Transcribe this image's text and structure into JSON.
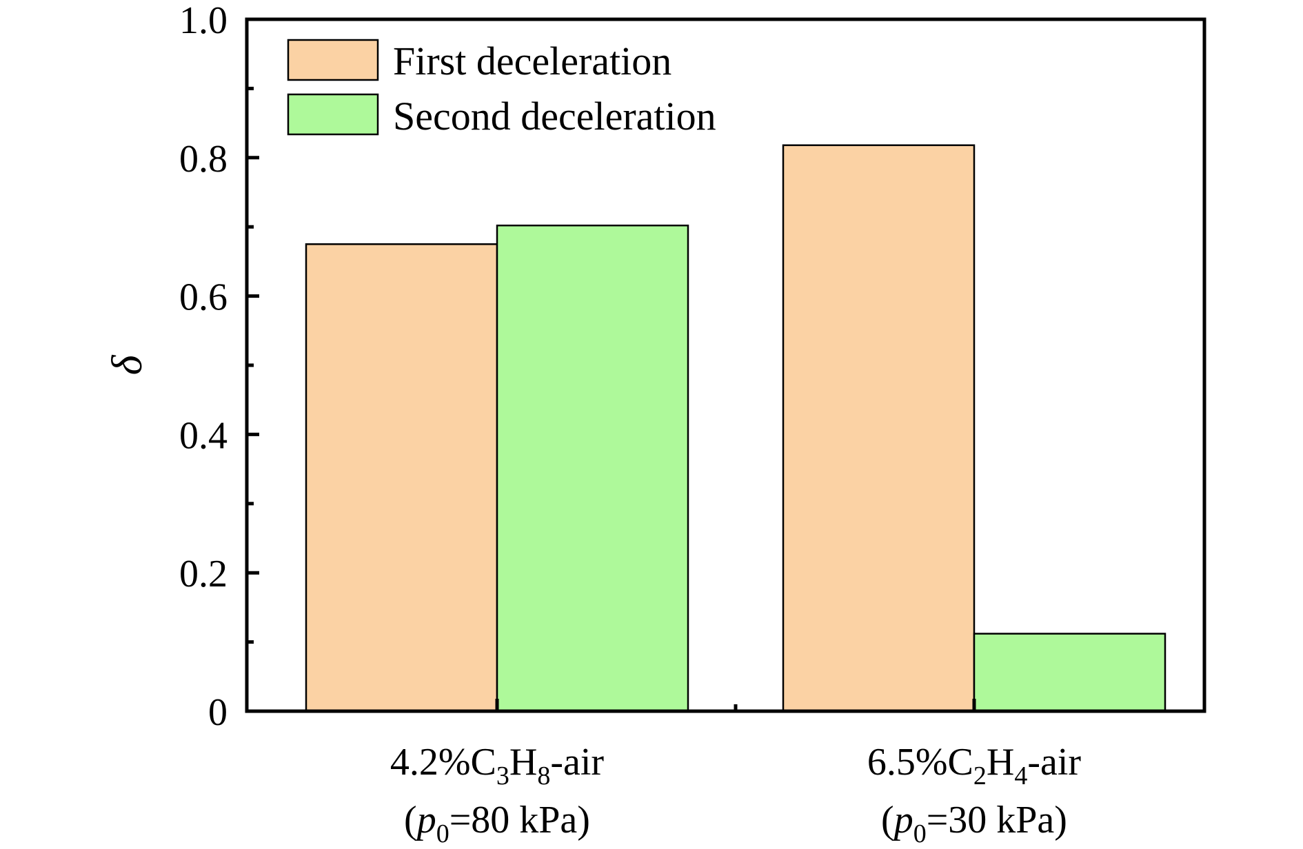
{
  "chart_data": {
    "type": "bar",
    "title": "",
    "xlabel": "",
    "ylabel": "δ",
    "ylim": [
      0,
      1.0
    ],
    "yticks": [
      "0",
      "0.2",
      "0.4",
      "0.6",
      "0.8",
      "1.0"
    ],
    "ytick_values": [
      0,
      0.2,
      0.4,
      0.6,
      0.8,
      1.0
    ],
    "minor_ticks": true,
    "grid": false,
    "legend_position": "top-left",
    "categories": [
      {
        "line1": {
          "prefix": "4.2%C",
          "sub1": "3",
          "mid": "H",
          "sub2": "8",
          "suffix": "-air"
        },
        "line2": {
          "open": "(",
          "var": "p",
          "sub": "0",
          "rest": "=80 kPa)"
        }
      },
      {
        "line1": {
          "prefix": "6.5%C",
          "sub1": "2",
          "mid": "H",
          "sub2": "4",
          "suffix": "-air"
        },
        "line2": {
          "open": "(",
          "var": "p",
          "sub": "0",
          "rest": "=30 kPa)"
        }
      }
    ],
    "series": [
      {
        "name": "First deceleration",
        "color": "#FBD2A4",
        "values": [
          0.675,
          0.818
        ]
      },
      {
        "name": "Second deceleration",
        "color": "#AEF99A",
        "values": [
          0.702,
          0.112
        ]
      }
    ]
  }
}
